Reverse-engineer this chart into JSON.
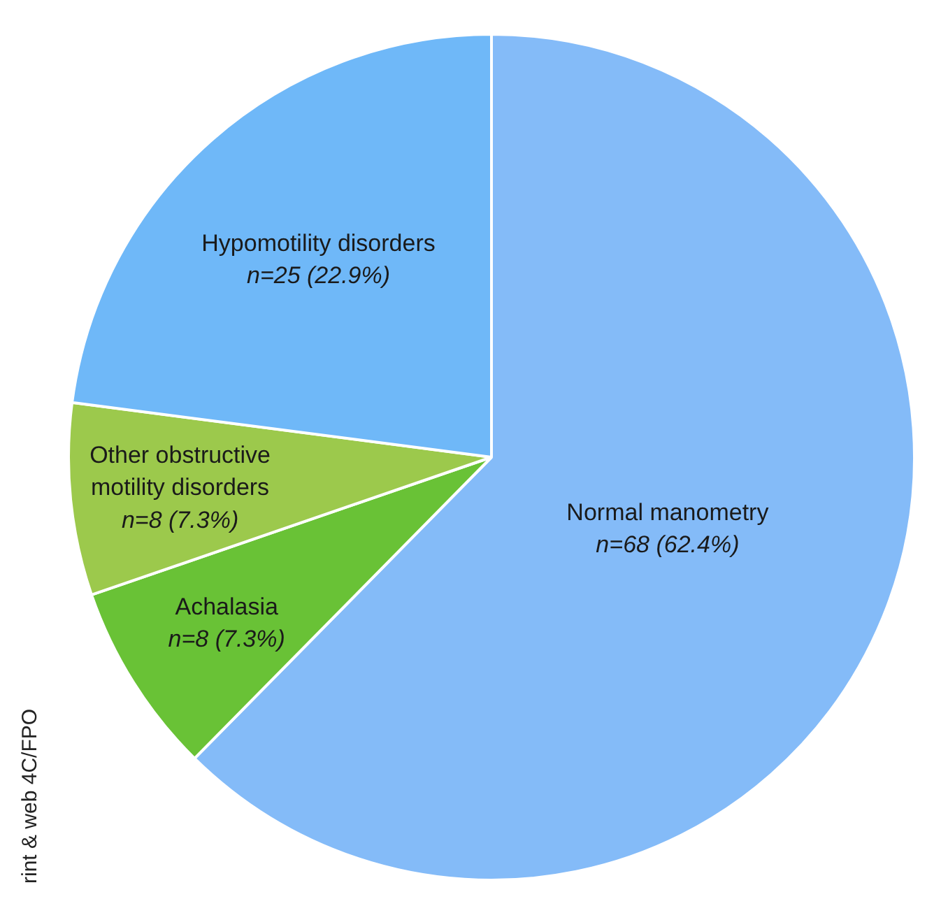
{
  "chart_data": {
    "type": "pie",
    "categories": [
      "Normal manometry",
      "Achalasia",
      "Other obstructive motility disorders",
      "Hypomotility disorders"
    ],
    "values": [
      68,
      8,
      8,
      25
    ],
    "value_labels": [
      "n=68 (62.4%)",
      "n=8 (7.3%)",
      "n=8 (7.3%)",
      "n=25 (22.9%)"
    ],
    "colors": [
      "#84bbf8",
      "#69c236",
      "#9cc94c",
      "#6fb8f8"
    ],
    "annotations": [
      "rint & web 4C/FPO"
    ],
    "legend": false
  }
}
